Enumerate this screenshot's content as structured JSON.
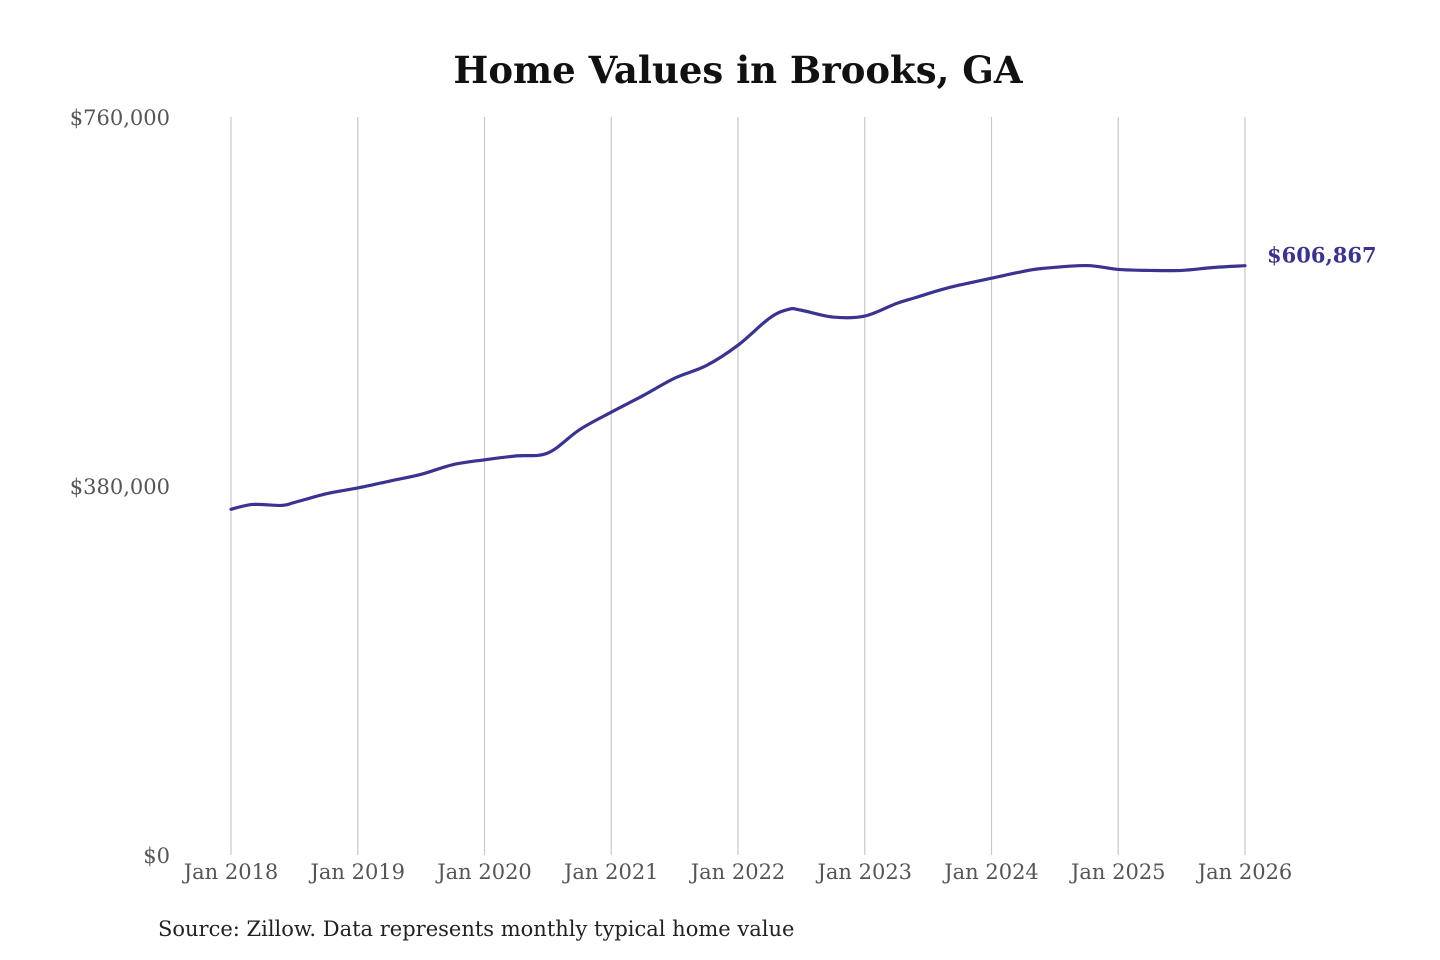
{
  "chart_data": {
    "type": "line",
    "title": "Home Values in Brooks, GA",
    "xlabel": "",
    "ylabel": "",
    "x_tick_labels": [
      "Jan 2018",
      "Jan 2019",
      "Jan 2020",
      "Jan 2021",
      "Jan 2022",
      "Jan 2023",
      "Jan 2024",
      "Jan 2025",
      "Jan 2026"
    ],
    "y_tick_labels": [
      "$0",
      "$380,000",
      "$760,000"
    ],
    "y_ticks": [
      0,
      380000,
      760000
    ],
    "ylim": [
      0,
      760000
    ],
    "xlim": [
      2018.0,
      2026.0
    ],
    "grid": "vertical",
    "line_color": "#3a3391",
    "end_label": "$606,867",
    "series": [
      {
        "x": [
          2018.0,
          2018.17,
          2018.4,
          2018.5,
          2018.75,
          2019.0,
          2019.25,
          2019.5,
          2019.75,
          2020.0,
          2020.25,
          2020.5,
          2020.75,
          2021.0,
          2021.25,
          2021.5,
          2021.75,
          2022.0,
          2022.25,
          2022.4,
          2022.5,
          2022.75,
          2023.0,
          2023.25,
          2023.4,
          2023.6,
          2023.75,
          2024.0,
          2024.25,
          2024.4,
          2024.75,
          2025.0,
          2025.25,
          2025.5,
          2025.75,
          2026.0
        ],
        "values": [
          356000,
          361000,
          360000,
          363000,
          372000,
          378000,
          385000,
          392000,
          402000,
          407000,
          411000,
          414000,
          438000,
          456000,
          473000,
          491000,
          504000,
          525000,
          553000,
          562000,
          561000,
          554000,
          555000,
          568000,
          574000,
          582000,
          587000,
          594000,
          601000,
          604000,
          607000,
          603000,
          602000,
          602000,
          605000,
          606867
        ]
      }
    ]
  },
  "source": "Source: Zillow. Data represents monthly typical home value"
}
